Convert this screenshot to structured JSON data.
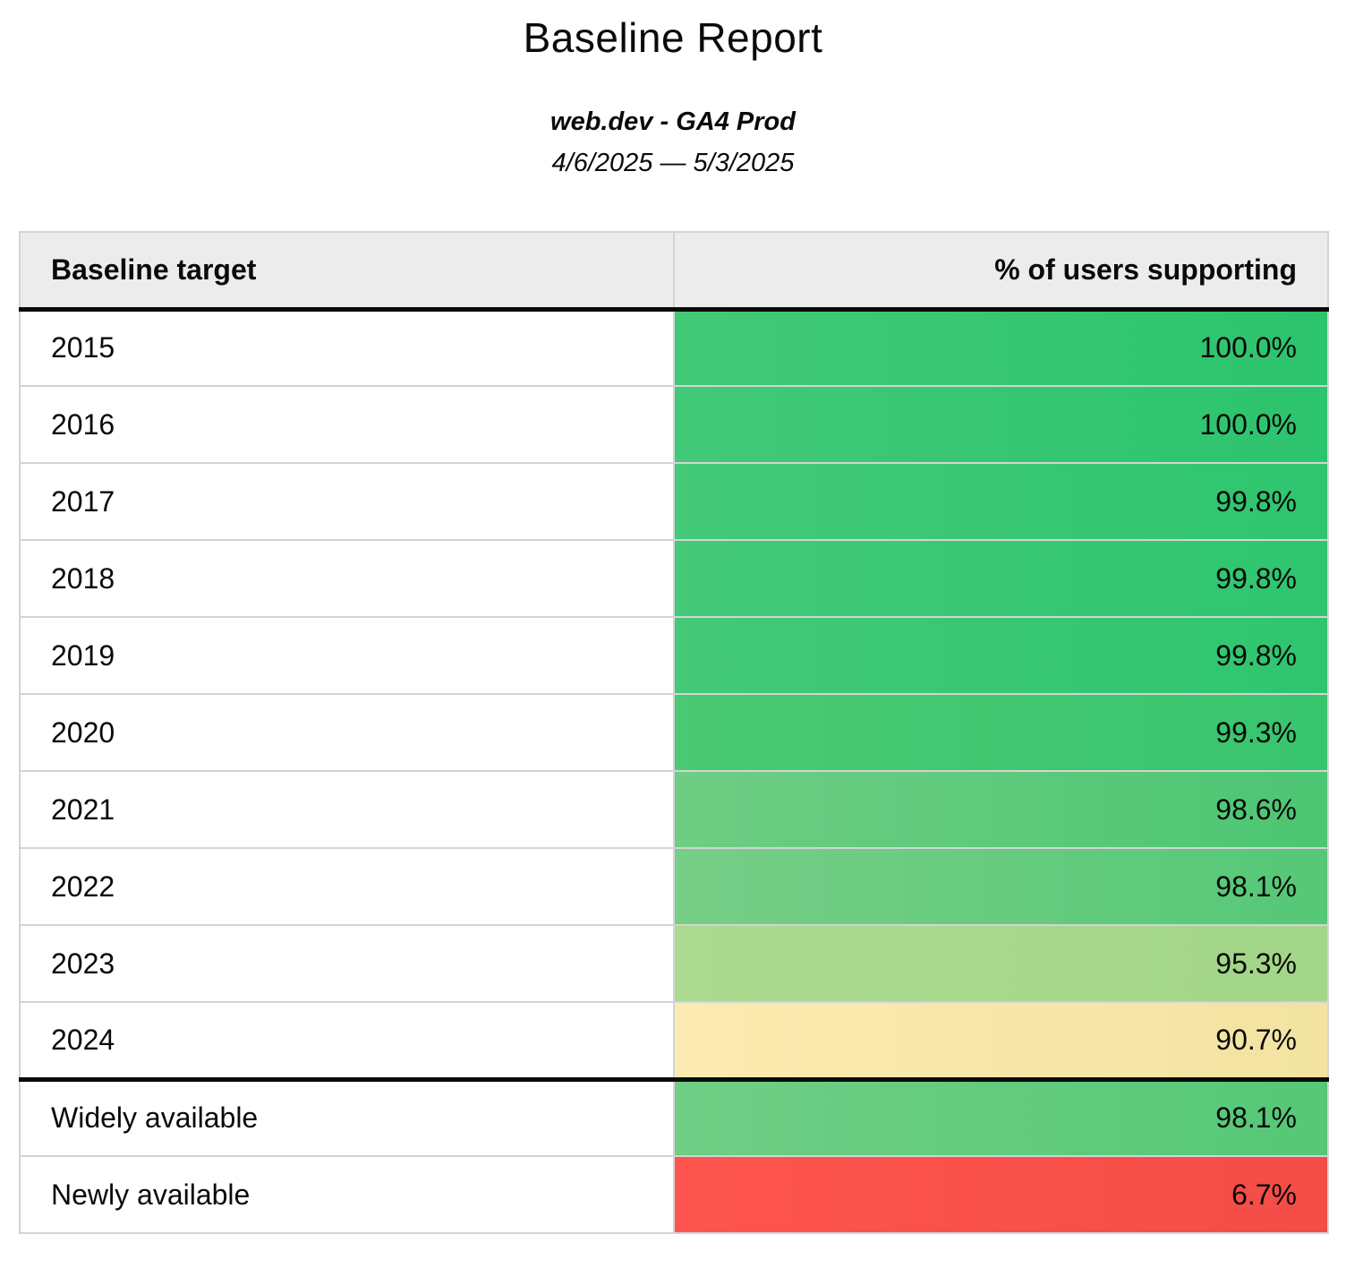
{
  "page": {
    "title": "Baseline Report",
    "subtitle": "web.dev - GA4 Prod",
    "date_range": "4/6/2025 — 5/3/2025"
  },
  "table": {
    "columns": [
      {
        "label": "Baseline target",
        "align": "left"
      },
      {
        "label": "% of users supporting",
        "align": "right"
      }
    ],
    "rows": [
      {
        "target": "2015",
        "value": "100.0%",
        "pct": 100.0,
        "color_left": "#42c977",
        "color_right": "#2cc46d",
        "divider_above": false
      },
      {
        "target": "2016",
        "value": "100.0%",
        "pct": 100.0,
        "color_left": "#42c977",
        "color_right": "#2cc46d",
        "divider_above": false
      },
      {
        "target": "2017",
        "value": "99.8%",
        "pct": 99.8,
        "color_left": "#43c977",
        "color_right": "#2fc56f",
        "divider_above": false
      },
      {
        "target": "2018",
        "value": "99.8%",
        "pct": 99.8,
        "color_left": "#43c977",
        "color_right": "#2fc56f",
        "divider_above": false
      },
      {
        "target": "2019",
        "value": "99.8%",
        "pct": 99.8,
        "color_left": "#43c977",
        "color_right": "#2fc56f",
        "divider_above": false
      },
      {
        "target": "2020",
        "value": "99.3%",
        "pct": 99.3,
        "color_left": "#4bc974",
        "color_right": "#38c56e",
        "divider_above": false
      },
      {
        "target": "2021",
        "value": "98.6%",
        "pct": 98.6,
        "color_left": "#6ecd83",
        "color_right": "#4cc673",
        "divider_above": false
      },
      {
        "target": "2022",
        "value": "98.1%",
        "pct": 98.1,
        "color_left": "#77ce87",
        "color_right": "#55c877",
        "divider_above": false
      },
      {
        "target": "2023",
        "value": "95.3%",
        "pct": 95.3,
        "color_left": "#abd98f",
        "color_right": "#a3d689",
        "divider_above": false
      },
      {
        "target": "2024",
        "value": "90.7%",
        "pct": 90.7,
        "color_left": "#fdeab0",
        "color_right": "#f2e3a2",
        "divider_above": false
      },
      {
        "target": "Widely available",
        "value": "98.1%",
        "pct": 98.1,
        "color_left": "#70ce85",
        "color_right": "#55c877",
        "divider_above": true
      },
      {
        "target": "Newly available",
        "value": "6.7%",
        "pct": 6.7,
        "color_left": "#fd554e",
        "color_right": "#f44c46",
        "divider_above": false
      }
    ]
  },
  "chart_data": {
    "type": "table",
    "title": "Baseline Report",
    "subtitle": "web.dev - GA4 Prod",
    "date_range": "4/6/2025 — 5/3/2025",
    "columns": [
      "Baseline target",
      "% of users supporting"
    ],
    "categories": [
      "2015",
      "2016",
      "2017",
      "2018",
      "2019",
      "2020",
      "2021",
      "2022",
      "2023",
      "2024",
      "Widely available",
      "Newly available"
    ],
    "values": [
      100.0,
      100.0,
      99.8,
      99.8,
      99.8,
      99.3,
      98.6,
      98.1,
      95.3,
      90.7,
      98.1,
      6.7
    ],
    "value_format": "percent_one_decimal",
    "layout_hints": {
      "value_cell_fill": "heatmap green (high) to yellow (~90) to red (low)",
      "section_break_after_row": "2024",
      "header_fill": "#ececec"
    }
  },
  "colors": {
    "header_bg": "#ececec",
    "grid_border": "#d4d4d4",
    "section_border": "#0a0a0a",
    "text": "#0a0a0a",
    "green_high": "#2fc56f",
    "green_mid": "#55c877",
    "green_low": "#a3d689",
    "yellow": "#f2e3a2",
    "red": "#f4514a"
  }
}
